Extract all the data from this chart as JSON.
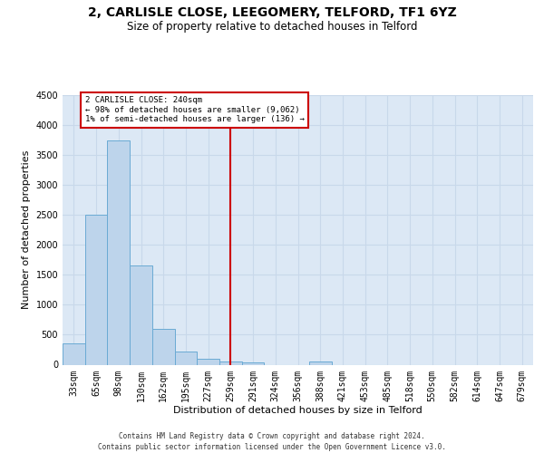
{
  "title_line1": "2, CARLISLE CLOSE, LEEGOMERY, TELFORD, TF1 6YZ",
  "title_line2": "Size of property relative to detached houses in Telford",
  "xlabel": "Distribution of detached houses by size in Telford",
  "ylabel": "Number of detached properties",
  "footer_line1": "Contains HM Land Registry data © Crown copyright and database right 2024.",
  "footer_line2": "Contains public sector information licensed under the Open Government Licence v3.0.",
  "categories": [
    "33sqm",
    "65sqm",
    "98sqm",
    "130sqm",
    "162sqm",
    "195sqm",
    "227sqm",
    "259sqm",
    "291sqm",
    "324sqm",
    "356sqm",
    "388sqm",
    "421sqm",
    "453sqm",
    "485sqm",
    "518sqm",
    "550sqm",
    "582sqm",
    "614sqm",
    "647sqm",
    "679sqm"
  ],
  "values": [
    350,
    2500,
    3750,
    1650,
    600,
    220,
    100,
    60,
    40,
    0,
    0,
    55,
    0,
    0,
    0,
    0,
    0,
    0,
    0,
    0,
    0
  ],
  "bar_color": "#bdd4eb",
  "bar_edge_color": "#6aaad4",
  "grid_color": "#c8d8ea",
  "background_color": "#dce8f5",
  "vline_index": 7,
  "vline_color": "#cc0000",
  "annotation_text": "2 CARLISLE CLOSE: 240sqm\n← 98% of detached houses are smaller (9,062)\n1% of semi-detached houses are larger (136) →",
  "annotation_box_color": "#ffffff",
  "annotation_box_edge": "#cc0000",
  "ylim": [
    0,
    4500
  ],
  "yticks": [
    0,
    500,
    1000,
    1500,
    2000,
    2500,
    3000,
    3500,
    4000,
    4500
  ],
  "title_fontsize": 10,
  "subtitle_fontsize": 8.5,
  "axis_label_fontsize": 8,
  "tick_fontsize": 7,
  "footer_fontsize": 5.5
}
